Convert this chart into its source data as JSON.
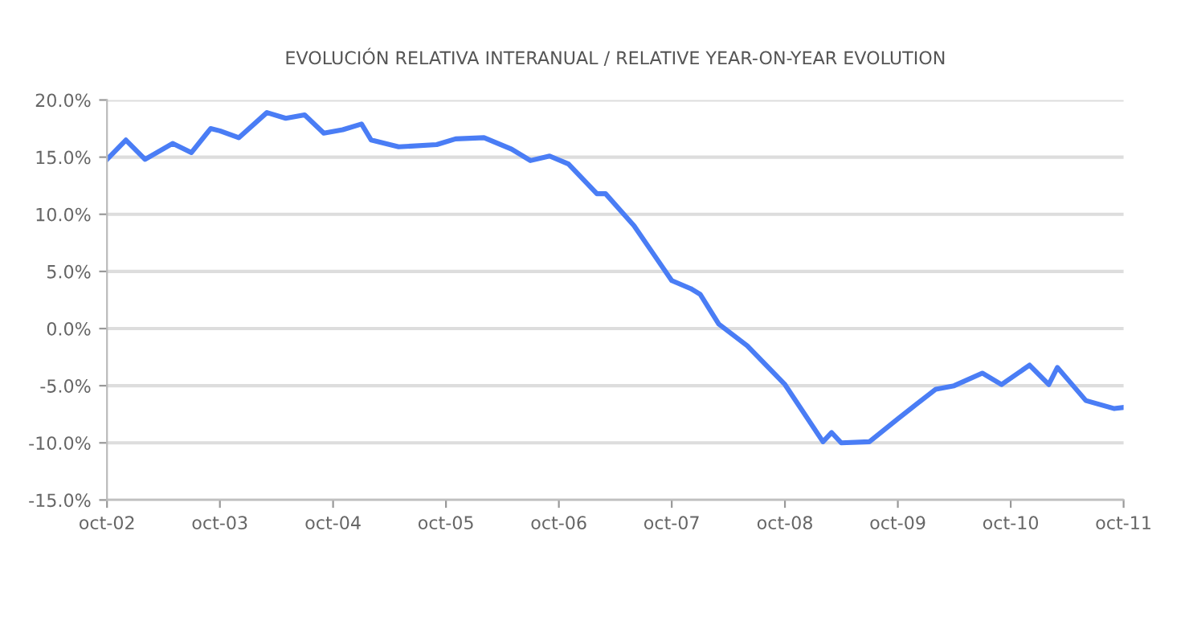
{
  "chart_data": {
    "type": "line",
    "title": "EVOLUCIÓN RELATIVA INTERANUAL / RELATIVE YEAR-ON-YEAR EVOLUTION",
    "x": [
      "2002-10",
      "2002-12",
      "2003-02",
      "2003-05",
      "2003-07",
      "2003-09",
      "2003-10",
      "2003-12",
      "2004-03",
      "2004-05",
      "2004-07",
      "2004-09",
      "2004-11",
      "2005-01",
      "2005-02",
      "2005-05",
      "2005-09",
      "2005-11",
      "2006-02",
      "2006-05",
      "2006-07",
      "2006-09",
      "2006-11",
      "2007-02",
      "2007-03",
      "2007-06",
      "2007-08",
      "2007-10",
      "2007-12",
      "2008-01",
      "2008-03",
      "2008-06",
      "2008-10",
      "2009-02",
      "2009-03",
      "2009-04",
      "2009-07",
      "2009-10",
      "2009-12",
      "2010-02",
      "2010-04",
      "2010-07",
      "2010-09",
      "2010-12",
      "2011-02",
      "2011-03",
      "2011-06",
      "2011-09",
      "2011-10"
    ],
    "series": [
      {
        "color": "#4a7df5",
        "values": [
          14.8,
          16.5,
          14.8,
          16.2,
          15.4,
          17.5,
          17.3,
          16.7,
          18.9,
          18.4,
          18.7,
          17.1,
          17.4,
          17.9,
          16.5,
          15.9,
          16.1,
          16.6,
          16.7,
          15.7,
          14.7,
          15.1,
          14.4,
          11.8,
          11.8,
          9.0,
          6.6,
          4.2,
          3.5,
          3.0,
          0.4,
          -1.5,
          -4.9,
          -9.9,
          -9.1,
          -10.0,
          -9.9,
          -7.9,
          -6.6,
          -5.3,
          -5.0,
          -3.9,
          -4.9,
          -3.2,
          -4.9,
          -3.4,
          -6.3,
          -7.0,
          -6.9
        ]
      }
    ],
    "xlim": [
      "2002-10",
      "2011-10"
    ],
    "xticks": [
      {
        "value": "2002-10",
        "label": "oct-02"
      },
      {
        "value": "2003-10",
        "label": "oct-03"
      },
      {
        "value": "2004-10",
        "label": "oct-04"
      },
      {
        "value": "2005-10",
        "label": "oct-05"
      },
      {
        "value": "2006-10",
        "label": "oct-06"
      },
      {
        "value": "2007-10",
        "label": "oct-07"
      },
      {
        "value": "2008-10",
        "label": "oct-08"
      },
      {
        "value": "2009-10",
        "label": "oct-09"
      },
      {
        "value": "2010-10",
        "label": "oct-10"
      },
      {
        "value": "2011-10",
        "label": "oct-11"
      }
    ],
    "ylim": [
      -15,
      20
    ],
    "yticks": [
      {
        "value": -15,
        "label": "-15.0%"
      },
      {
        "value": -10,
        "label": "-10.0%"
      },
      {
        "value": -5,
        "label": "-5.0%"
      },
      {
        "value": 0,
        "label": "0.0%"
      },
      {
        "value": 5,
        "label": "5.0%"
      },
      {
        "value": 10,
        "label": "10.0%"
      },
      {
        "value": 15,
        "label": "15.0%"
      },
      {
        "value": 20,
        "label": "20.0%"
      }
    ],
    "grid": "y",
    "marker": "none",
    "line_style": "solid"
  }
}
